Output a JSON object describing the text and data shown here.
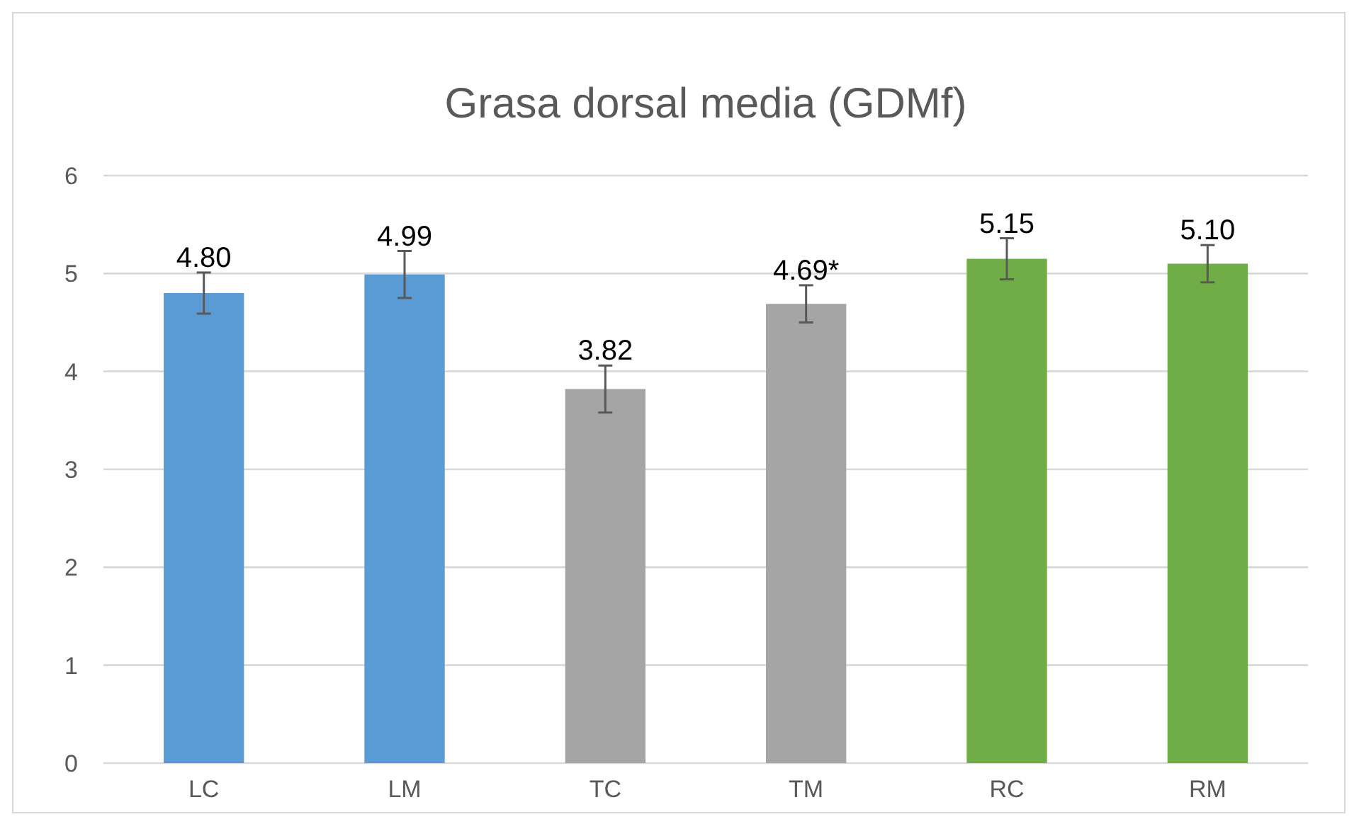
{
  "chart_data": {
    "type": "bar",
    "title": "Grasa dorsal media (GDMf)",
    "categories": [
      "LC",
      "LM",
      "TC",
      "TM",
      "RC",
      "RM"
    ],
    "values": [
      4.8,
      4.99,
      3.82,
      4.69,
      5.15,
      5.1
    ],
    "colors": [
      "#5b9bd5",
      "#5b9bd5",
      "#a5a5a5",
      "#a5a5a5",
      "#70ad47",
      "#70ad47"
    ],
    "errors": [
      0.21,
      0.24,
      0.24,
      0.19,
      0.21,
      0.19
    ],
    "value_labels": [
      "4.80",
      "4.99",
      "3.82",
      "4.69*",
      "5.15",
      "5.10"
    ],
    "ylim": [
      0,
      6
    ],
    "yticks": [
      0,
      1,
      2,
      3,
      4,
      5,
      6
    ],
    "grid": "y"
  }
}
